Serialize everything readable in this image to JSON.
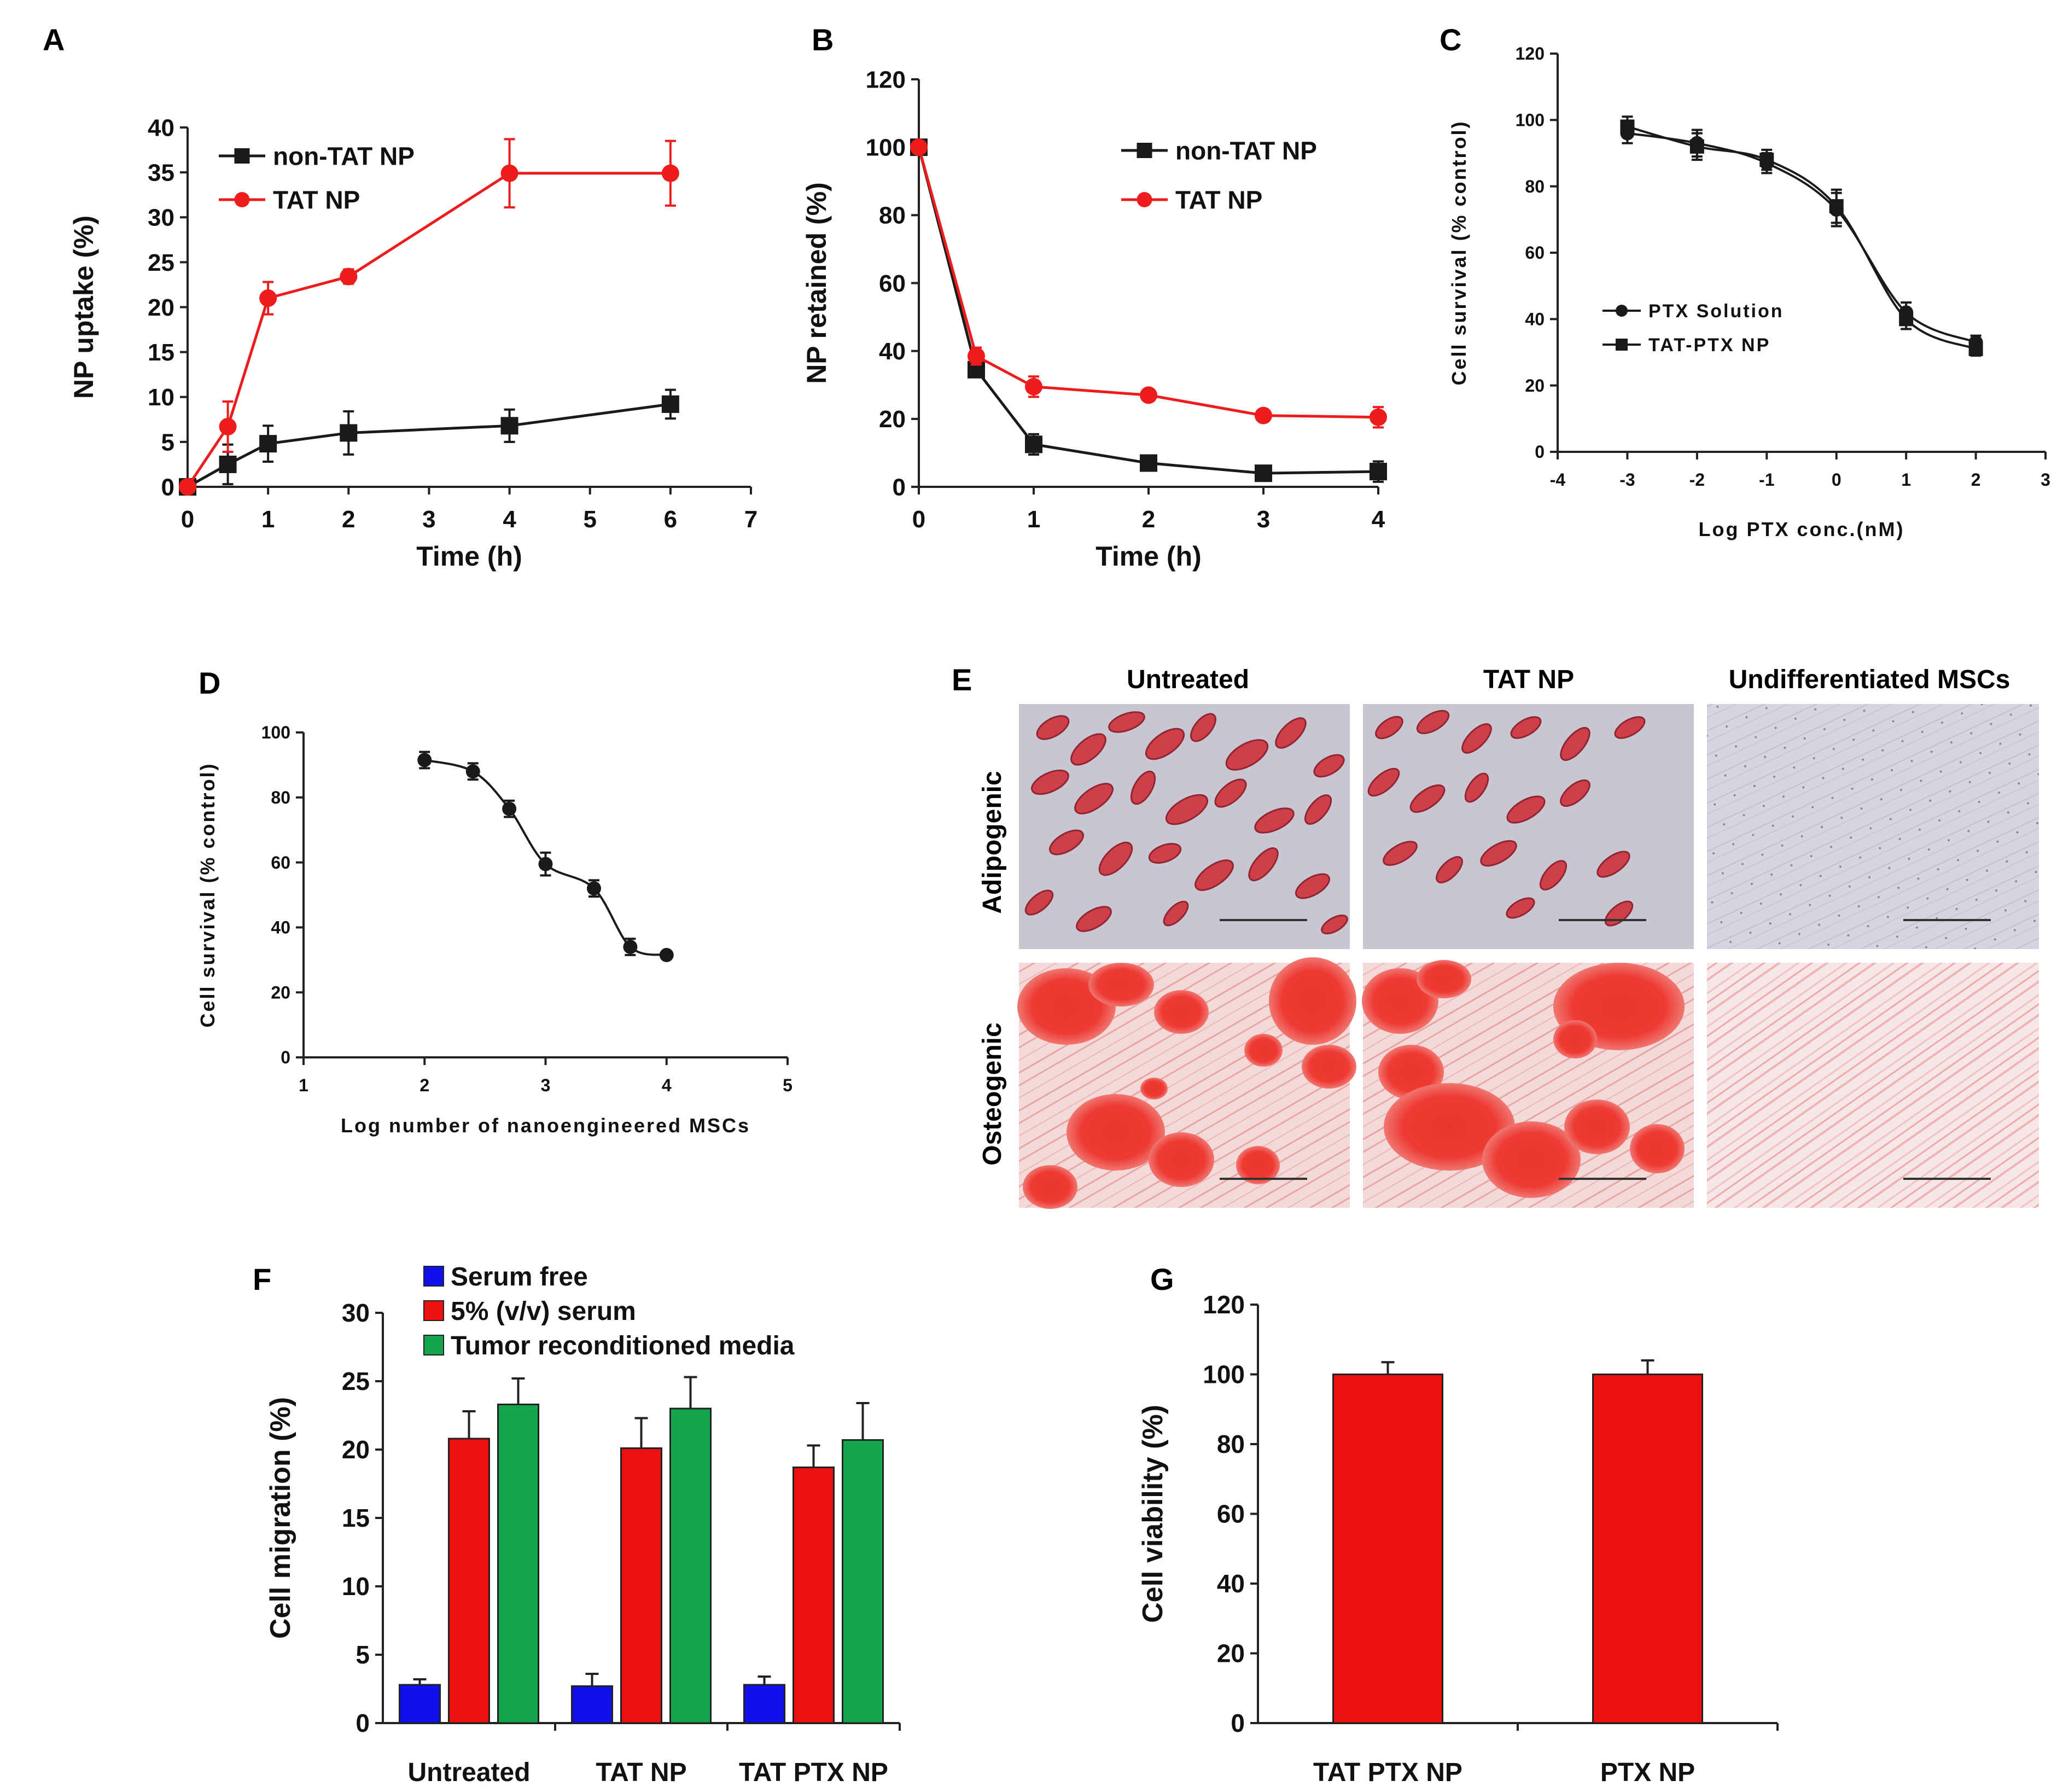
{
  "figure": {
    "panel_letters": [
      "A",
      "B",
      "C",
      "D",
      "E",
      "F",
      "G"
    ]
  },
  "chart_data": [
    {
      "panel": "A",
      "type": "line",
      "xlabel": "Time (h)",
      "ylabel": "NP uptake (%)",
      "xlim": [
        0,
        7
      ],
      "ylim": [
        0,
        40
      ],
      "xticks": [
        "0",
        "1",
        "2",
        "3",
        "4",
        "5",
        "6",
        "7"
      ],
      "yticks": [
        "0",
        "5",
        "10",
        "15",
        "20",
        "25",
        "30",
        "35",
        "40"
      ],
      "legend": "top-left",
      "series": [
        {
          "name": "non-TAT NP",
          "color": "#1a1a1a",
          "marker": "square",
          "x": [
            0,
            0.5,
            1,
            2,
            4,
            6
          ],
          "y": [
            0,
            2.5,
            4.8,
            6.0,
            6.8,
            9.2
          ],
          "err": [
            0.3,
            2.2,
            2.0,
            2.4,
            1.8,
            1.6
          ]
        },
        {
          "name": "TAT NP",
          "color": "#ee1c1c",
          "marker": "circle",
          "x": [
            0,
            0.5,
            1,
            2,
            4,
            6
          ],
          "y": [
            0,
            6.7,
            21.0,
            23.4,
            34.9,
            34.9
          ],
          "err": [
            0.3,
            2.8,
            1.8,
            0.8,
            3.8,
            3.6
          ]
        }
      ]
    },
    {
      "panel": "B",
      "type": "line",
      "xlabel": "Time (h)",
      "ylabel": "NP retained (%)",
      "xlim": [
        0,
        4
      ],
      "ylim": [
        0,
        120
      ],
      "xticks": [
        "0",
        "1",
        "2",
        "3",
        "4"
      ],
      "yticks": [
        "0",
        "20",
        "40",
        "60",
        "80",
        "100",
        "120"
      ],
      "legend": "top-right",
      "series": [
        {
          "name": "non-TAT NP",
          "color": "#1a1a1a",
          "marker": "square",
          "x": [
            0,
            0.5,
            1,
            2,
            3,
            4
          ],
          "y": [
            100,
            34.5,
            12.5,
            7.0,
            4.0,
            4.5
          ],
          "err": [
            1,
            2,
            3,
            1,
            1,
            3
          ]
        },
        {
          "name": "TAT NP",
          "color": "#ee1c1c",
          "marker": "circle",
          "x": [
            0,
            0.5,
            1,
            2,
            3,
            4
          ],
          "y": [
            100,
            38.5,
            29.5,
            27.0,
            21.0,
            20.5
          ],
          "err": [
            1,
            2.5,
            3,
            1,
            0.8,
            3
          ]
        }
      ]
    },
    {
      "panel": "C",
      "type": "line",
      "xlabel": "Log PTX conc.(nM)",
      "ylabel": "Cell survival (% control)",
      "xlim": [
        -4,
        3
      ],
      "ylim": [
        0,
        120
      ],
      "xticks": [
        "-4",
        "-3",
        "-2",
        "-1",
        "0",
        "1",
        "2",
        "3"
      ],
      "yticks": [
        "0",
        "20",
        "40",
        "60",
        "80",
        "100",
        "120"
      ],
      "legend": "center-left",
      "series": [
        {
          "name": "PTX Solution",
          "color": "#1a1a1a",
          "marker": "circle",
          "x": [
            -3,
            -2,
            -1,
            0,
            1,
            2
          ],
          "y": [
            96,
            93,
            87,
            73,
            42,
            33
          ],
          "err": [
            3,
            4,
            3,
            5,
            3,
            2
          ]
        },
        {
          "name": "TAT-PTX NP",
          "color": "#1a1a1a",
          "marker": "square",
          "x": [
            -3,
            -2,
            -1,
            0,
            1,
            2
          ],
          "y": [
            98,
            92,
            88,
            74,
            40,
            31
          ],
          "err": [
            3,
            4,
            3,
            5,
            3,
            2
          ]
        }
      ]
    },
    {
      "panel": "D",
      "type": "line",
      "xlabel": "Log number of nanoengineered MSCs",
      "ylabel": "Cell survival (% control)",
      "xlim": [
        1,
        5
      ],
      "ylim": [
        0,
        100
      ],
      "xticks": [
        "1",
        "2",
        "3",
        "4",
        "5"
      ],
      "yticks": [
        "0",
        "20",
        "40",
        "60",
        "80",
        "100"
      ],
      "series": [
        {
          "name": "",
          "color": "#1a1a1a",
          "marker": "circle",
          "x": [
            2.0,
            2.4,
            2.7,
            3.0,
            3.4,
            3.7,
            4.0
          ],
          "y": [
            91.5,
            88,
            76.5,
            59.5,
            52,
            34,
            31.5
          ],
          "err": [
            2.5,
            2.5,
            2.5,
            3.5,
            2.5,
            2.5,
            1
          ]
        }
      ]
    },
    {
      "panel": "F",
      "type": "bar",
      "ylabel": "Cell migration (%)",
      "ylim": [
        0,
        30
      ],
      "yticks": [
        "0",
        "5",
        "10",
        "15",
        "20",
        "25",
        "30"
      ],
      "categories": [
        "Untreated",
        "TAT NP",
        "TAT PTX NP"
      ],
      "legend": "top-left",
      "series": [
        {
          "name": "Serum free",
          "color": "#1010ee",
          "values": [
            2.8,
            2.7,
            2.8
          ],
          "err": [
            0.4,
            0.9,
            0.6
          ]
        },
        {
          "name": "5% (v/v) serum",
          "color": "#ee0f0f",
          "values": [
            20.8,
            20.1,
            18.7
          ],
          "err": [
            2.0,
            2.2,
            1.6
          ]
        },
        {
          "name": "Tumor reconditioned media",
          "color": "#14a64d",
          "values": [
            23.3,
            23.0,
            20.7
          ],
          "err": [
            1.9,
            2.3,
            2.7
          ]
        }
      ]
    },
    {
      "panel": "G",
      "type": "bar",
      "ylabel": "Cell viability (%)",
      "ylim": [
        0,
        120
      ],
      "yticks": [
        "0",
        "20",
        "40",
        "60",
        "80",
        "100",
        "120"
      ],
      "categories": [
        "TAT PTX NP",
        "PTX NP"
      ],
      "series": [
        {
          "name": "",
          "color": "#ee0f0f",
          "values": [
            100,
            100
          ],
          "err": [
            3.5,
            4.0
          ]
        }
      ]
    }
  ],
  "micrographs": {
    "panel": "E",
    "columns": [
      "Untreated",
      "TAT NP",
      "Undifferentiated MSCs"
    ],
    "rows": [
      "Adipogenic",
      "Osteogenic"
    ]
  }
}
